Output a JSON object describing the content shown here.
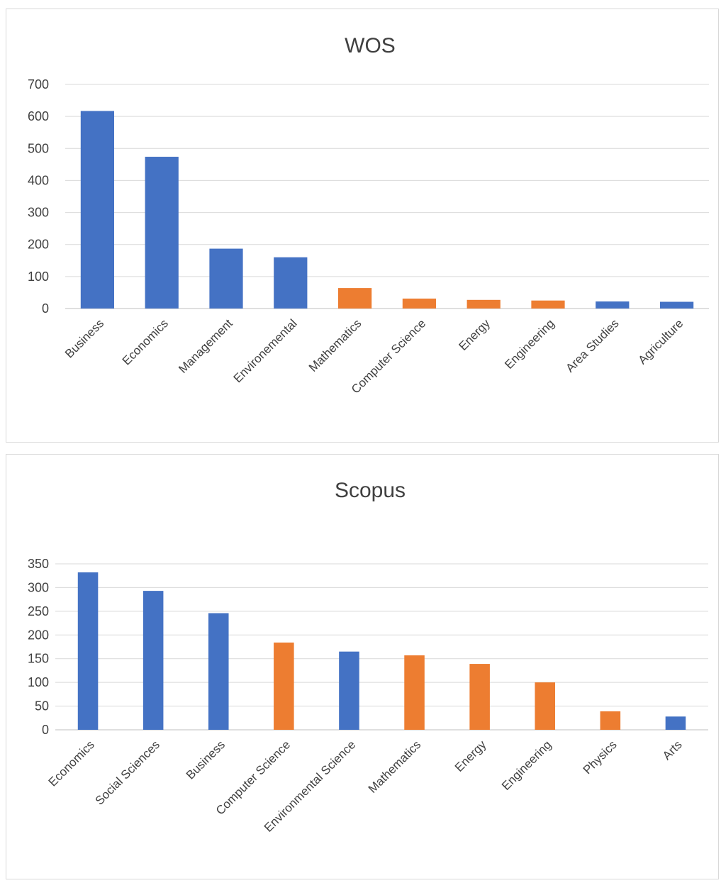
{
  "chart_data": [
    {
      "type": "bar",
      "title": "WOS",
      "categories": [
        "Business",
        "Economics",
        "Management",
        "Environemental",
        "Mathematics",
        "Computer Science",
        "Energy",
        "Engineering",
        "Area Studies",
        "Agriculture"
      ],
      "values": [
        617,
        474,
        187,
        160,
        64,
        31,
        27,
        25,
        22,
        21
      ],
      "bar_groups": [
        "blue",
        "blue",
        "blue",
        "blue",
        "orange",
        "orange",
        "orange",
        "orange",
        "blue",
        "blue"
      ],
      "colors": {
        "blue": "#4472C4",
        "orange": "#ED7D31"
      },
      "ylim": [
        0,
        700
      ],
      "yticks": [
        0,
        100,
        200,
        300,
        400,
        500,
        600,
        700
      ],
      "xlabel": "",
      "ylabel": "",
      "grid": true,
      "legend": "none"
    },
    {
      "type": "bar",
      "title": "Scopus",
      "categories": [
        "Economics",
        "Social Sciences",
        "Business",
        "Computer Science",
        "Environmental Science",
        "Mathematics",
        "Energy",
        "Engineering",
        "Physics",
        "Arts"
      ],
      "values": [
        332,
        293,
        246,
        184,
        165,
        157,
        139,
        100,
        39,
        28
      ],
      "bar_groups": [
        "blue",
        "blue",
        "blue",
        "orange",
        "blue",
        "orange",
        "orange",
        "orange",
        "orange",
        "blue"
      ],
      "colors": {
        "blue": "#4472C4",
        "orange": "#ED7D31"
      },
      "ylim": [
        0,
        350
      ],
      "yticks": [
        0,
        50,
        100,
        150,
        200,
        250,
        300,
        350
      ],
      "xlabel": "",
      "ylabel": "",
      "grid": true,
      "legend": "none"
    }
  ]
}
